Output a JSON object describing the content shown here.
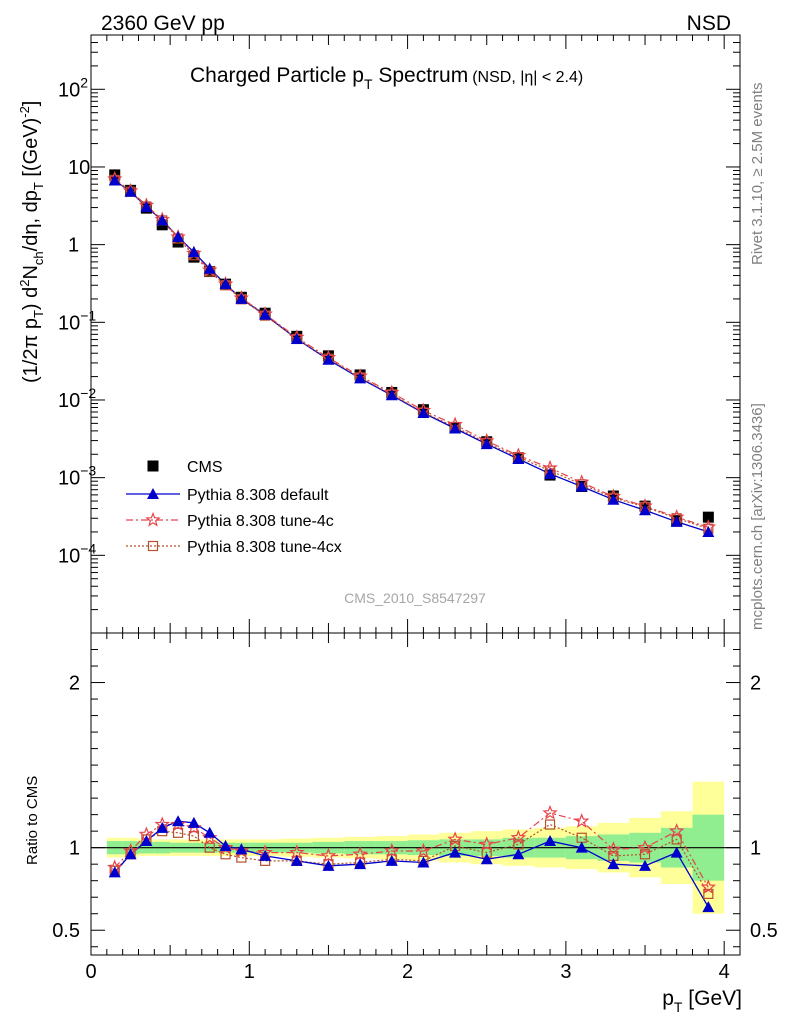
{
  "header": {
    "left": "2360 GeV pp",
    "right": "NSD"
  },
  "side_text": {
    "top": "Rivet 3.1.10, ≥ 2.5M events",
    "bottom": "mcplots.cern.ch [arXiv:1306.3436]"
  },
  "watermark": "CMS_2010_S8547297",
  "colors": {
    "cms": "#000000",
    "default": "#0000cc",
    "tune4c": "#e8434a",
    "tune4cx": "#b5512b",
    "band_inner": "#90ee90",
    "band_outer": "#ffff99"
  },
  "chart_data": [
    {
      "type": "scatter",
      "panel": "main",
      "title_main": "Charged Particle p",
      "title_sub": "T",
      "title_main2": " Spectrum",
      "title_extra": "(NSD, |η| < 2.4)",
      "ylabel": "(1/2π p_T) d²N_ch/dη, dp_T [(GeV)⁻²]",
      "yscale": "log",
      "xlim": [
        0,
        4.1
      ],
      "ylim": [
        1e-05,
        500
      ],
      "y_ticks": [
        {
          "v": 0.0001,
          "base": "10",
          "exp": "−4"
        },
        {
          "v": 0.001,
          "base": "10",
          "exp": "−3"
        },
        {
          "v": 0.01,
          "base": "10",
          "exp": "−2"
        },
        {
          "v": 0.1,
          "base": "10",
          "exp": "−1"
        },
        {
          "v": 1,
          "base": "1",
          "exp": ""
        },
        {
          "v": 10,
          "base": "10",
          "exp": ""
        },
        {
          "v": 100,
          "base": "10",
          "exp": "2"
        }
      ],
      "legend_position": "left-middle",
      "x": [
        0.15,
        0.25,
        0.35,
        0.45,
        0.55,
        0.65,
        0.75,
        0.85,
        0.95,
        1.1,
        1.3,
        1.5,
        1.7,
        1.9,
        2.1,
        2.3,
        2.5,
        2.7,
        2.9,
        3.1,
        3.3,
        3.5,
        3.7,
        3.9
      ],
      "series": [
        {
          "name": "CMS",
          "key": "cms",
          "values": [
            7.9,
            5.0,
            2.95,
            1.8,
            1.08,
            0.69,
            0.45,
            0.31,
            0.21,
            0.131,
            0.066,
            0.037,
            0.021,
            0.0125,
            0.0075,
            0.0044,
            0.0029,
            0.0018,
            0.00108,
            0.00077,
            0.00058,
            0.00043,
            0.00028,
            0.00031
          ]
        },
        {
          "name": "Pythia 8.308 default",
          "key": "default",
          "values": [
            6.7,
            4.8,
            3.06,
            2.05,
            1.26,
            0.8,
            0.49,
            0.31,
            0.2,
            0.125,
            0.061,
            0.033,
            0.019,
            0.0115,
            0.0068,
            0.0043,
            0.0027,
            0.00174,
            0.00112,
            0.00077,
            0.00052,
            0.00038,
            0.00027,
            0.0002
          ]
        },
        {
          "name": "Pythia 8.308 tune-4c",
          "key": "tune4c",
          "values": [
            7.0,
            4.9,
            3.2,
            2.1,
            1.25,
            0.77,
            0.47,
            0.31,
            0.205,
            0.127,
            0.064,
            0.035,
            0.0202,
            0.0124,
            0.0073,
            0.0048,
            0.00296,
            0.00193,
            0.00133,
            0.00087,
            0.00057,
            0.00043,
            0.00031,
            0.00023
          ]
        },
        {
          "name": "Pythia 8.308 tune-4cx",
          "key": "tune4cx",
          "values": [
            6.8,
            4.8,
            3.1,
            2.05,
            1.2,
            0.73,
            0.45,
            0.3,
            0.198,
            0.122,
            0.061,
            0.034,
            0.0195,
            0.0118,
            0.0069,
            0.0045,
            0.0028,
            0.00184,
            0.00123,
            0.00082,
            0.00055,
            0.00042,
            0.0003,
            0.00022
          ]
        }
      ]
    },
    {
      "type": "line",
      "panel": "ratio",
      "ylabel": "Ratio to CMS",
      "xlabel_main": "p",
      "xlabel_sub": "T",
      "xlabel_unit": " [GeV]",
      "xlim": [
        0,
        4.1
      ],
      "ylim": [
        0.35,
        2.3
      ],
      "x_ticks": [
        "0",
        "1",
        "2",
        "3",
        "4"
      ],
      "y_ticks": [
        "0.5",
        "1",
        "2"
      ],
      "x": [
        0.15,
        0.25,
        0.35,
        0.45,
        0.55,
        0.65,
        0.75,
        0.85,
        0.95,
        1.1,
        1.3,
        1.5,
        1.7,
        1.9,
        2.1,
        2.3,
        2.5,
        2.7,
        2.9,
        3.1,
        3.3,
        3.5,
        3.7,
        3.9
      ],
      "series": [
        {
          "name": "Pythia 8.308 default",
          "key": "default",
          "values": [
            0.85,
            0.96,
            1.04,
            1.12,
            1.16,
            1.15,
            1.09,
            1.01,
            0.99,
            0.95,
            0.92,
            0.89,
            0.9,
            0.92,
            0.91,
            0.97,
            0.93,
            0.96,
            1.04,
            1.0,
            0.9,
            0.89,
            0.97,
            0.64
          ]
        },
        {
          "name": "Pythia 8.308 tune-4c",
          "key": "tune4c",
          "values": [
            0.88,
            0.98,
            1.08,
            1.14,
            1.14,
            1.12,
            1.06,
            1.0,
            0.98,
            0.97,
            0.97,
            0.95,
            0.96,
            0.98,
            0.98,
            1.05,
            1.02,
            1.06,
            1.21,
            1.16,
            0.99,
            1.0,
            1.1,
            0.76
          ]
        },
        {
          "name": "Pythia 8.308 tune-4cx",
          "key": "tune4cx",
          "values": [
            0.86,
            0.96,
            1.05,
            1.1,
            1.09,
            1.07,
            1.0,
            0.96,
            0.94,
            0.92,
            0.92,
            0.9,
            0.91,
            0.93,
            0.92,
            1.01,
            0.97,
            1.02,
            1.14,
            1.06,
            0.95,
            0.96,
            1.05,
            0.72
          ]
        }
      ],
      "bands": {
        "edges": [
          0.1,
          0.2,
          0.3,
          0.4,
          0.5,
          0.6,
          0.7,
          0.8,
          0.9,
          1.0,
          1.2,
          1.4,
          1.6,
          1.8,
          2.0,
          2.2,
          2.4,
          2.6,
          2.8,
          3.0,
          3.2,
          3.4,
          3.6,
          3.8,
          4.0
        ],
        "inner": [
          0.04,
          0.04,
          0.035,
          0.035,
          0.03,
          0.03,
          0.03,
          0.03,
          0.03,
          0.03,
          0.03,
          0.035,
          0.04,
          0.04,
          0.045,
          0.05,
          0.05,
          0.06,
          0.06,
          0.07,
          0.08,
          0.09,
          0.12,
          0.2
        ],
        "outer": [
          0.06,
          0.06,
          0.05,
          0.05,
          0.05,
          0.05,
          0.05,
          0.05,
          0.05,
          0.05,
          0.055,
          0.06,
          0.065,
          0.07,
          0.08,
          0.09,
          0.1,
          0.11,
          0.12,
          0.13,
          0.15,
          0.18,
          0.22,
          0.4
        ]
      }
    }
  ]
}
